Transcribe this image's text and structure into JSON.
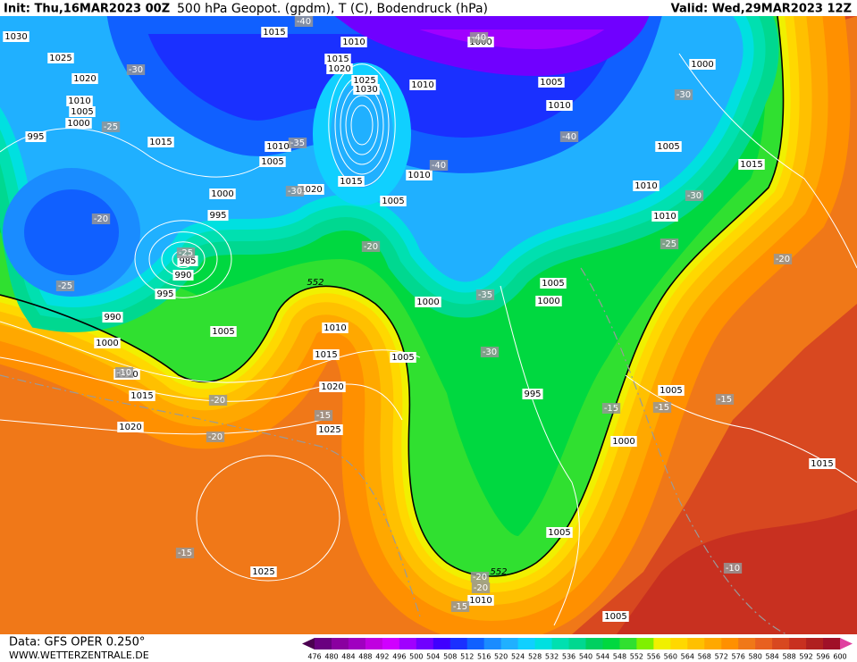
{
  "header": {
    "init": "Init: Thu,16MAR2023 00Z",
    "title": "500 hPa Geopot. (gpdm), T (C), Bodendruck (hPa)",
    "valid": "Valid: Wed,29MAR2023 12Z"
  },
  "footer": {
    "source": "Data: GFS OPER 0.250°",
    "website": "WWW.WETTERZENTRALE.DE"
  },
  "colorbar": {
    "ticks": [
      476,
      480,
      484,
      488,
      492,
      496,
      500,
      504,
      508,
      512,
      516,
      520,
      524,
      528,
      532,
      536,
      540,
      544,
      548,
      552,
      556,
      560,
      564,
      568,
      572,
      576,
      580,
      584,
      588,
      592,
      596,
      600
    ],
    "colors": [
      "#4b0050",
      "#6a0080",
      "#8a00a0",
      "#a000c0",
      "#c000e0",
      "#d000ff",
      "#a000ff",
      "#7000ff",
      "#4000ff",
      "#1a30ff",
      "#1060ff",
      "#1a8cff",
      "#20b0ff",
      "#10d0ff",
      "#00e0e0",
      "#00e0b0",
      "#00d890",
      "#00d060",
      "#00d840",
      "#30e030",
      "#80f000",
      "#f0f000",
      "#ffd800",
      "#ffc000",
      "#ffa800",
      "#ff9000",
      "#f07818",
      "#e86020",
      "#d84820",
      "#c83020",
      "#b02020",
      "#a01028",
      "#e040a0"
    ]
  },
  "height_labels": [
    552,
    552
  ],
  "pressure_labels": [
    1030,
    1015,
    1010,
    1000,
    1025,
    1015,
    1020,
    1000,
    1020,
    1025,
    1010,
    1005,
    1030,
    1010,
    1005,
    1010,
    1000,
    995,
    1015,
    1010,
    1005,
    1005,
    1015,
    1010,
    1015,
    1020,
    1010,
    1000,
    1005,
    995,
    1010,
    985,
    990,
    1005,
    995,
    1000,
    1000,
    990,
    1010,
    1005,
    1000,
    1015,
    1005,
    1010,
    1020,
    1005,
    995,
    1015,
    1000,
    1020,
    1025,
    1015,
    1005,
    1025,
    1010,
    1005
  ],
  "temperature_labels": [
    -40,
    -40,
    -30,
    -30,
    -25,
    -35,
    -40,
    -40,
    -30,
    -30,
    -20,
    -20,
    -25,
    -25,
    -20,
    -25,
    -35,
    -30,
    -10,
    -20,
    -15,
    -15,
    -15,
    -15,
    -20,
    -15,
    -10,
    -20,
    -20,
    -15
  ]
}
